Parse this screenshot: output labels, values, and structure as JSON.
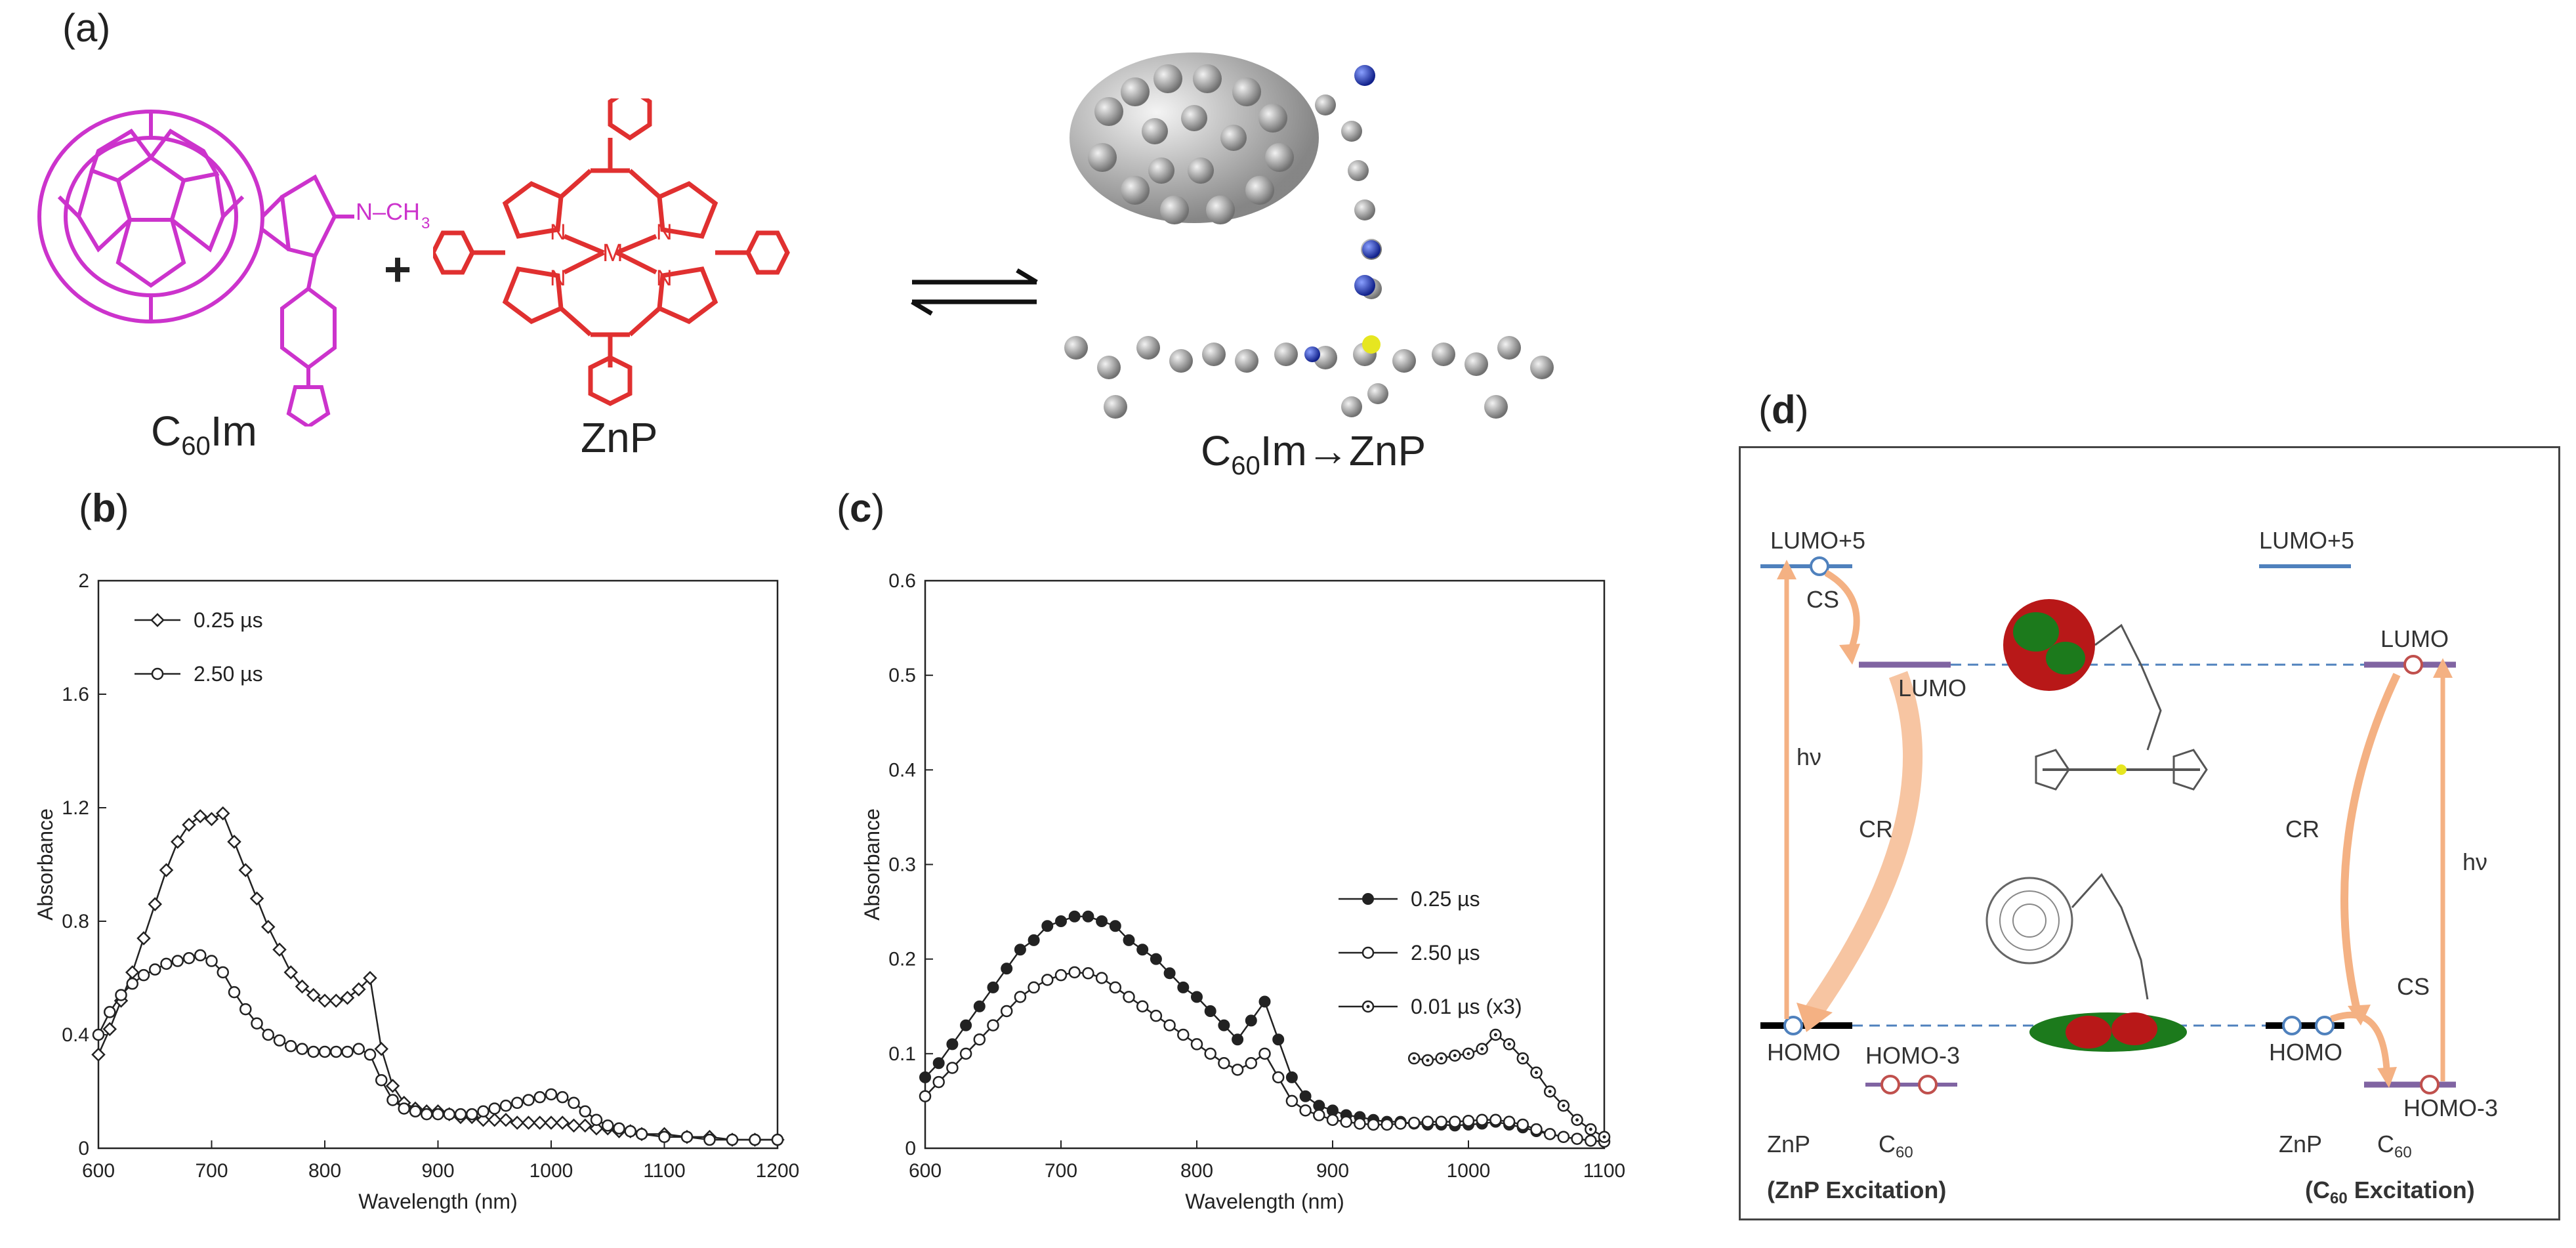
{
  "panel_a": {
    "label": "(a)",
    "c60im_label": "C",
    "c60im_sub": "60",
    "c60im_tail": "Im",
    "nch3_label": "N–CH",
    "nch3_sub": "3",
    "plus": "+",
    "metal_label": "M",
    "n_label": "N",
    "znp_label": "ZnP",
    "complex_label_pre": "C",
    "complex_label_sub": "60",
    "complex_label_post": "Im→ZnP"
  },
  "panel_b": {
    "label": "(",
    "label_bold": "b",
    "label_close": ")"
  },
  "panel_c": {
    "label": "(",
    "label_bold": "c",
    "label_close": ")"
  },
  "panel_d": {
    "label": "(",
    "label_bold": "d",
    "label_close": ")",
    "lumo5_left": "LUMO+5",
    "lumo5_right": "LUMO+5",
    "lumo_mid": "LUMO",
    "lumo_right": "LUMO",
    "cs_left": "CS",
    "cs_right": "CS",
    "cr_left": "CR",
    "cr_right": "CR",
    "hv_left": "hν",
    "hv_right": "hν",
    "homo_left": "HOMO",
    "homo3_left": "HOMO-3",
    "homo_right": "HOMO",
    "homo3_right": "HOMO-3",
    "znp_left": "ZnP",
    "c60_left": "C",
    "c60_left_sub": "60",
    "znp_right": "ZnP",
    "c60_right": "C",
    "c60_right_sub": "60",
    "caption_left": "(ZnP Excitation)",
    "caption_right_pre": "(C",
    "caption_right_sub": "60",
    "caption_right_post": " Excitation)",
    "colors": {
      "level_blue": "#4f81bd",
      "level_purple": "#8064a2",
      "level_black": "#000000",
      "arrow": "#f4b183",
      "dash": "#4f81bd"
    }
  },
  "chart_data": [
    {
      "type": "line",
      "xlabel": "Wavelength (nm)",
      "ylabel": "Absorbance",
      "xlim": [
        600,
        1200
      ],
      "ylim": [
        0,
        2
      ],
      "xticks": [
        "600",
        "700",
        "800",
        "900",
        "1000",
        "1100",
        "1200"
      ],
      "yticks": [
        "0",
        "0.4",
        "0.8",
        "1.2",
        "1.6",
        "2"
      ],
      "legend_placement": "top-left",
      "series": [
        {
          "name": "0.25 µs",
          "marker": "diamond",
          "x": [
            600,
            610,
            620,
            630,
            640,
            650,
            660,
            670,
            680,
            690,
            700,
            710,
            720,
            730,
            740,
            750,
            760,
            770,
            780,
            790,
            800,
            810,
            820,
            830,
            840,
            850,
            860,
            870,
            880,
            890,
            900,
            910,
            920,
            930,
            940,
            950,
            960,
            970,
            980,
            990,
            1000,
            1010,
            1020,
            1030,
            1040,
            1050,
            1060,
            1070,
            1080,
            1100,
            1120,
            1140,
            1160,
            1180,
            1200
          ],
          "y": [
            0.33,
            0.42,
            0.52,
            0.62,
            0.74,
            0.86,
            0.98,
            1.08,
            1.14,
            1.17,
            1.16,
            1.18,
            1.08,
            0.98,
            0.88,
            0.78,
            0.7,
            0.62,
            0.57,
            0.54,
            0.52,
            0.52,
            0.53,
            0.56,
            0.6,
            0.35,
            0.22,
            0.16,
            0.14,
            0.13,
            0.13,
            0.12,
            0.11,
            0.11,
            0.1,
            0.1,
            0.1,
            0.09,
            0.09,
            0.09,
            0.09,
            0.09,
            0.08,
            0.08,
            0.07,
            0.07,
            0.06,
            0.06,
            0.05,
            0.05,
            0.04,
            0.04,
            0.03,
            0.03,
            0.03
          ]
        },
        {
          "name": "2.50 µs",
          "marker": "circle",
          "x": [
            600,
            610,
            620,
            630,
            640,
            650,
            660,
            670,
            680,
            690,
            700,
            710,
            720,
            730,
            740,
            750,
            760,
            770,
            780,
            790,
            800,
            810,
            820,
            830,
            840,
            850,
            860,
            870,
            880,
            890,
            900,
            910,
            920,
            930,
            940,
            950,
            960,
            970,
            980,
            990,
            1000,
            1010,
            1020,
            1030,
            1040,
            1050,
            1060,
            1070,
            1080,
            1100,
            1120,
            1140,
            1160,
            1180,
            1200
          ],
          "y": [
            0.4,
            0.48,
            0.54,
            0.58,
            0.61,
            0.63,
            0.65,
            0.66,
            0.67,
            0.68,
            0.66,
            0.62,
            0.55,
            0.49,
            0.44,
            0.4,
            0.38,
            0.36,
            0.35,
            0.34,
            0.34,
            0.34,
            0.34,
            0.35,
            0.33,
            0.24,
            0.17,
            0.14,
            0.13,
            0.12,
            0.12,
            0.12,
            0.12,
            0.12,
            0.13,
            0.14,
            0.15,
            0.16,
            0.17,
            0.18,
            0.19,
            0.18,
            0.16,
            0.13,
            0.1,
            0.08,
            0.07,
            0.06,
            0.05,
            0.04,
            0.04,
            0.03,
            0.03,
            0.03,
            0.03
          ]
        }
      ]
    },
    {
      "type": "line",
      "xlabel": "Wavelength (nm)",
      "ylabel": "Absorbance",
      "xlim": [
        600,
        1100
      ],
      "ylim": [
        0,
        0.6
      ],
      "xticks": [
        "600",
        "700",
        "800",
        "900",
        "1000",
        "1100"
      ],
      "yticks": [
        "0",
        "0.1",
        "0.2",
        "0.3",
        "0.4",
        "0.5",
        "0.6"
      ],
      "legend_placement": "center-right",
      "series": [
        {
          "name": "0.25 µs",
          "marker": "filled-circle",
          "x": [
            600,
            610,
            620,
            630,
            640,
            650,
            660,
            670,
            680,
            690,
            700,
            710,
            720,
            730,
            740,
            750,
            760,
            770,
            780,
            790,
            800,
            810,
            820,
            830,
            840,
            850,
            860,
            870,
            880,
            890,
            900,
            910,
            920,
            930,
            940,
            950,
            960,
            970,
            980,
            990,
            1000,
            1010,
            1020,
            1030,
            1040,
            1050,
            1060,
            1070,
            1080,
            1090,
            1100
          ],
          "y": [
            0.075,
            0.09,
            0.11,
            0.13,
            0.15,
            0.17,
            0.19,
            0.21,
            0.22,
            0.235,
            0.24,
            0.245,
            0.245,
            0.24,
            0.235,
            0.22,
            0.21,
            0.2,
            0.185,
            0.17,
            0.16,
            0.145,
            0.13,
            0.115,
            0.135,
            0.155,
            0.115,
            0.075,
            0.055,
            0.045,
            0.04,
            0.035,
            0.033,
            0.03,
            0.028,
            0.028,
            0.026,
            0.025,
            0.025,
            0.024,
            0.025,
            0.026,
            0.028,
            0.025,
            0.022,
            0.018,
            0.015,
            0.012,
            0.01,
            0.008,
            0.007
          ]
        },
        {
          "name": "2.50 µs",
          "marker": "circle",
          "x": [
            600,
            610,
            620,
            630,
            640,
            650,
            660,
            670,
            680,
            690,
            700,
            710,
            720,
            730,
            740,
            750,
            760,
            770,
            780,
            790,
            800,
            810,
            820,
            830,
            840,
            850,
            860,
            870,
            880,
            890,
            900,
            910,
            920,
            930,
            940,
            950,
            960,
            970,
            980,
            990,
            1000,
            1010,
            1020,
            1030,
            1040,
            1050,
            1060,
            1070,
            1080,
            1090,
            1100
          ],
          "y": [
            0.055,
            0.07,
            0.085,
            0.1,
            0.115,
            0.13,
            0.145,
            0.16,
            0.17,
            0.178,
            0.183,
            0.186,
            0.185,
            0.18,
            0.17,
            0.16,
            0.15,
            0.14,
            0.13,
            0.12,
            0.11,
            0.1,
            0.09,
            0.083,
            0.09,
            0.1,
            0.075,
            0.05,
            0.04,
            0.035,
            0.03,
            0.028,
            0.026,
            0.025,
            0.025,
            0.026,
            0.027,
            0.028,
            0.028,
            0.028,
            0.029,
            0.03,
            0.03,
            0.028,
            0.025,
            0.02,
            0.015,
            0.012,
            0.01,
            0.008,
            0.007
          ]
        },
        {
          "name": "0.01 µs (x3)",
          "marker": "circle-dot",
          "x": [
            960,
            970,
            980,
            990,
            1000,
            1010,
            1020,
            1030,
            1040,
            1050,
            1060,
            1070,
            1080,
            1090,
            1100
          ],
          "y": [
            0.095,
            0.093,
            0.095,
            0.098,
            0.1,
            0.105,
            0.12,
            0.11,
            0.095,
            0.08,
            0.06,
            0.045,
            0.03,
            0.02,
            0.012
          ]
        }
      ]
    }
  ]
}
